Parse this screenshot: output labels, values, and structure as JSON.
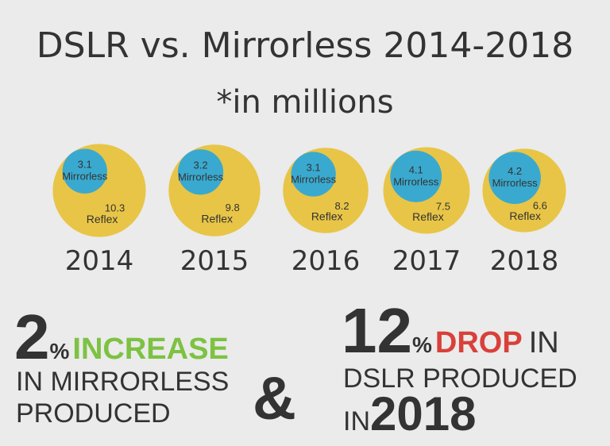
{
  "chart_data": {
    "type": "nested-bubble",
    "title": "DSLR vs. Mirrorless 2014-2018",
    "subtitle": "*in millions",
    "categories": [
      "2014",
      "2015",
      "2016",
      "2017",
      "2018"
    ],
    "series": [
      {
        "name": "Mirrorless",
        "color": "#3aa9cf",
        "values": [
          3.1,
          3.2,
          3.1,
          4.1,
          4.2
        ]
      },
      {
        "name": "Reflex",
        "color": "#e8c547",
        "values": [
          10.3,
          9.8,
          8.2,
          7.5,
          6.6
        ]
      }
    ]
  },
  "callouts": {
    "left": {
      "number": 2,
      "unit": "%",
      "highlight": "INCREASE",
      "line2": "IN MIRRORLESS",
      "line3": "PRODUCED"
    },
    "middle": "&",
    "right": {
      "number": 12,
      "unit": "%",
      "highlight": "DROP",
      "line1_end": "IN",
      "line2": "DSLR PRODUCED",
      "line3_start": "IN",
      "line3_end": "2018"
    }
  }
}
